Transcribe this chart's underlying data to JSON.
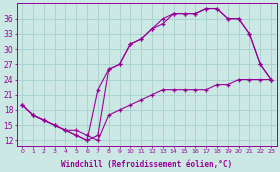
{
  "xlabel": "Windchill (Refroidissement éolien,°C)",
  "bg_color": "#cce8e4",
  "line_color": "#990099",
  "grid_color": "#aad4d0",
  "xlim": [
    -0.5,
    23.5
  ],
  "ylim": [
    11,
    39
  ],
  "xticks": [
    0,
    1,
    2,
    3,
    4,
    5,
    6,
    7,
    8,
    9,
    10,
    11,
    12,
    13,
    14,
    15,
    16,
    17,
    18,
    19,
    20,
    21,
    22,
    23
  ],
  "yticks": [
    12,
    15,
    18,
    21,
    24,
    27,
    30,
    33,
    36
  ],
  "line1_x": [
    0,
    1,
    2,
    3,
    4,
    5,
    6,
    7,
    8,
    9,
    10,
    11,
    12,
    13,
    14,
    15,
    16,
    17,
    18,
    19,
    20,
    21,
    22,
    23
  ],
  "line1_y": [
    19,
    17,
    16,
    15,
    14,
    13,
    12,
    13,
    26,
    27,
    31,
    32,
    34,
    35,
    37,
    37,
    37,
    38,
    38,
    36,
    36,
    33,
    27,
    24
  ],
  "line2_x": [
    0,
    1,
    2,
    3,
    4,
    5,
    6,
    7,
    8,
    9,
    10,
    11,
    12,
    13,
    14,
    15,
    16,
    17,
    18,
    19,
    20,
    21,
    22,
    23
  ],
  "line2_y": [
    19,
    17,
    16,
    15,
    14,
    13,
    12,
    22,
    26,
    27,
    31,
    32,
    34,
    36,
    37,
    37,
    37,
    38,
    38,
    36,
    36,
    33,
    27,
    24
  ],
  "line3_x": [
    0,
    1,
    2,
    3,
    4,
    5,
    6,
    7,
    8,
    9,
    10,
    11,
    12,
    13,
    14,
    15,
    16,
    17,
    18,
    19,
    20,
    21,
    22,
    23
  ],
  "line3_y": [
    19,
    17,
    16,
    15,
    14,
    14,
    13,
    12,
    17,
    18,
    19,
    20,
    21,
    22,
    22,
    22,
    22,
    22,
    23,
    23,
    24,
    24,
    24,
    24
  ]
}
